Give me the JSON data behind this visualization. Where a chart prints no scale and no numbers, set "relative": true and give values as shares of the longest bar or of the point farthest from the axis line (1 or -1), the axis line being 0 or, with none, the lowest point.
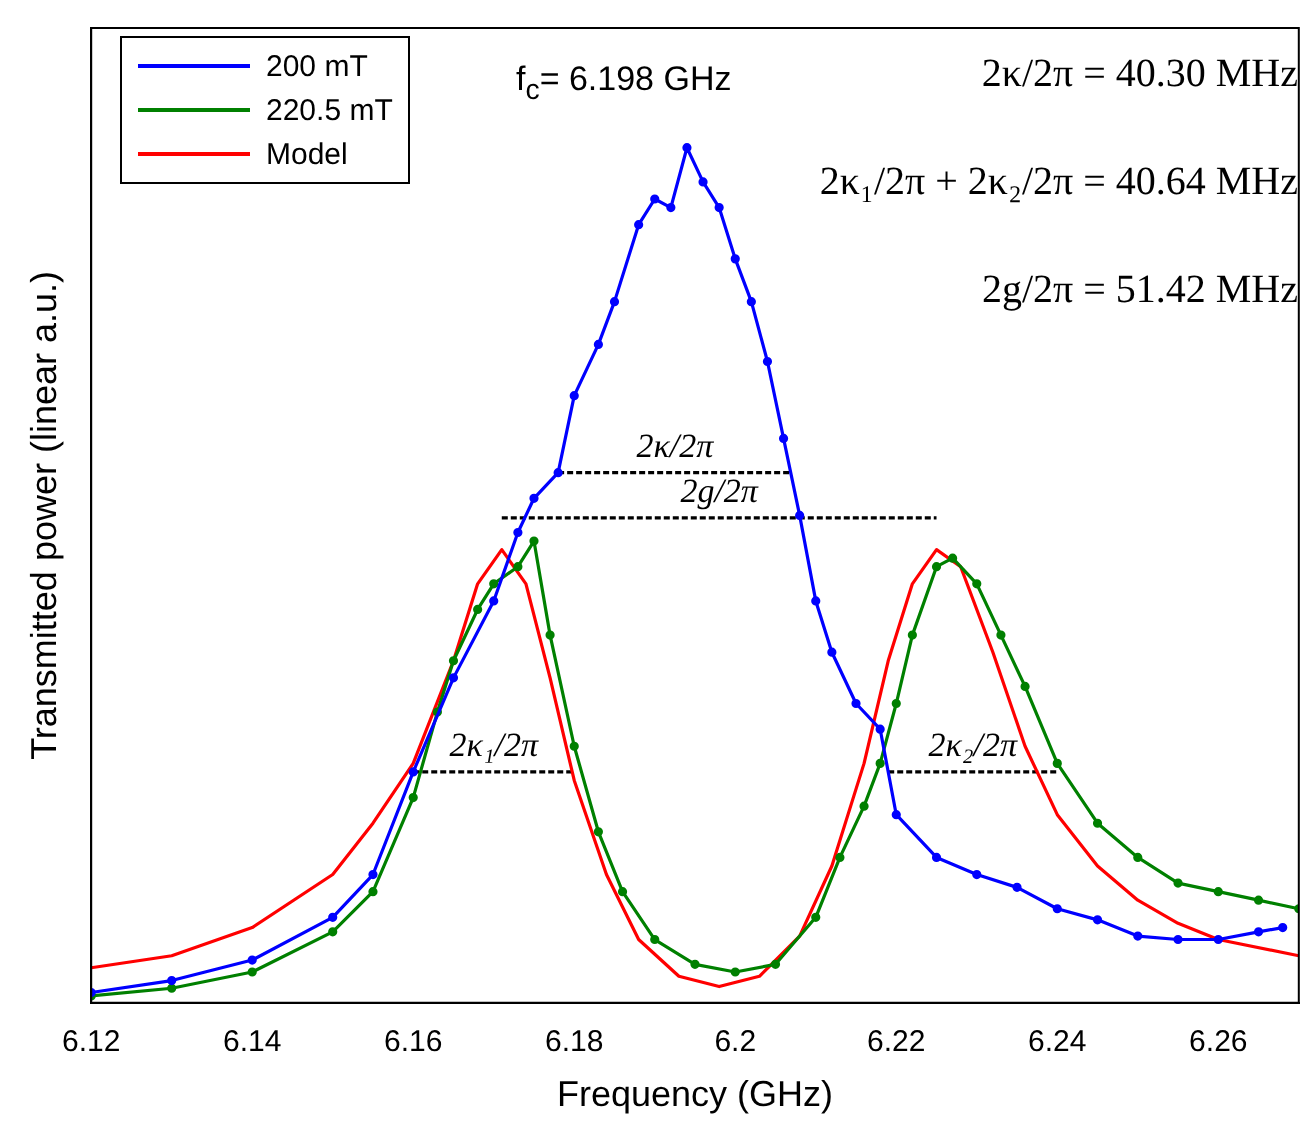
{
  "chart_data": {
    "type": "line",
    "xlabel": "Frequency (GHz)",
    "ylabel": "Transmitted power (linear a.u.)",
    "relative": true,
    "xlim": [
      6.12,
      6.27
    ],
    "xticks": [
      6.12,
      6.14,
      6.16,
      6.18,
      6.2,
      6.22,
      6.24,
      6.26
    ],
    "legend": "top left",
    "grid": false,
    "series": [
      {
        "name": "200 mT",
        "color": "#0000ff",
        "marker": "circle",
        "x": [
          6.12,
          6.13,
          6.14,
          6.15,
          6.155,
          6.16,
          6.165,
          6.17,
          6.173,
          6.175,
          6.178,
          6.18,
          6.183,
          6.185,
          6.188,
          6.19,
          6.192,
          6.194,
          6.196,
          6.198,
          6.2,
          6.202,
          6.204,
          6.206,
          6.208,
          6.21,
          6.212,
          6.215,
          6.218,
          6.22,
          6.225,
          6.23,
          6.235,
          6.24,
          6.245,
          6.25,
          6.255,
          6.26,
          6.265,
          6.268
        ],
        "values": [
          0.012,
          0.026,
          0.05,
          0.1,
          0.15,
          0.27,
          0.38,
          0.47,
          0.55,
          0.59,
          0.62,
          0.71,
          0.77,
          0.82,
          0.91,
          0.94,
          0.93,
          1.0,
          0.96,
          0.93,
          0.87,
          0.82,
          0.75,
          0.66,
          0.57,
          0.47,
          0.41,
          0.35,
          0.32,
          0.22,
          0.17,
          0.15,
          0.135,
          0.11,
          0.097,
          0.078,
          0.074,
          0.074,
          0.083,
          0.088
        ]
      },
      {
        "name": "220.5 mT",
        "color": "#008000",
        "marker": "circle",
        "x": [
          6.12,
          6.13,
          6.14,
          6.15,
          6.155,
          6.16,
          6.163,
          6.165,
          6.168,
          6.17,
          6.173,
          6.175,
          6.177,
          6.18,
          6.183,
          6.186,
          6.19,
          6.195,
          6.2,
          6.205,
          6.21,
          6.213,
          6.216,
          6.218,
          6.22,
          6.222,
          6.225,
          6.227,
          6.23,
          6.233,
          6.236,
          6.24,
          6.245,
          6.25,
          6.255,
          6.26,
          6.265,
          6.27
        ],
        "values": [
          0.008,
          0.017,
          0.036,
          0.083,
          0.13,
          0.24,
          0.34,
          0.4,
          0.46,
          0.49,
          0.51,
          0.54,
          0.43,
          0.3,
          0.2,
          0.13,
          0.074,
          0.045,
          0.036,
          0.045,
          0.1,
          0.17,
          0.23,
          0.28,
          0.35,
          0.43,
          0.51,
          0.52,
          0.49,
          0.43,
          0.37,
          0.28,
          0.21,
          0.17,
          0.14,
          0.13,
          0.12,
          0.11
        ]
      },
      {
        "name": "Model",
        "color": "#ff0000",
        "marker": "none",
        "x": [
          6.12,
          6.13,
          6.14,
          6.15,
          6.155,
          6.16,
          6.165,
          6.168,
          6.171,
          6.174,
          6.177,
          6.18,
          6.184,
          6.188,
          6.193,
          6.198,
          6.203,
          6.208,
          6.212,
          6.216,
          6.219,
          6.222,
          6.225,
          6.228,
          6.232,
          6.236,
          6.24,
          6.245,
          6.25,
          6.255,
          6.26,
          6.27
        ],
        "values": [
          0.041,
          0.055,
          0.088,
          0.15,
          0.21,
          0.28,
          0.4,
          0.49,
          0.53,
          0.49,
          0.38,
          0.26,
          0.15,
          0.074,
          0.031,
          0.019,
          0.031,
          0.078,
          0.16,
          0.28,
          0.4,
          0.49,
          0.53,
          0.51,
          0.41,
          0.3,
          0.22,
          0.16,
          0.12,
          0.093,
          0.074,
          0.055
        ]
      },
      {
        "color": "#000000",
        "marker": "none",
        "line_style": "dashed",
        "x": [
          6.178,
          6.207
        ],
        "values": [
          0.62,
          0.62
        ]
      },
      {
        "color": "#000000",
        "marker": "none",
        "line_style": "dashed",
        "x": [
          6.171,
          6.225
        ],
        "values": [
          0.567,
          0.567
        ]
      },
      {
        "color": "#000000",
        "marker": "none",
        "line_style": "dashed",
        "x": [
          6.16,
          6.18
        ],
        "values": [
          0.27,
          0.27
        ]
      },
      {
        "color": "#000000",
        "marker": "none",
        "line_style": "dashed",
        "x": [
          6.219,
          6.24
        ],
        "values": [
          0.27,
          0.27
        ]
      }
    ],
    "annotations": [
      "f$_{c}$= 6.198 GHz",
      "2κ/2π = 40.30 MHz",
      "2κ₁/2π + 2κ₂/2π = 40.64 MHz",
      "2g/2π = 51.42 MHz",
      {
        "text": "2κ/2π",
        "x": 6.1925,
        "y": 0.62
      },
      {
        "text": "2g/2π",
        "x": 6.198,
        "y": 0.567
      },
      {
        "text": "2κ₁/2π",
        "x": 6.17,
        "y": 0.27
      },
      {
        "text": "2κ₂/2π",
        "x": 6.2295,
        "y": 0.27
      }
    ]
  }
}
